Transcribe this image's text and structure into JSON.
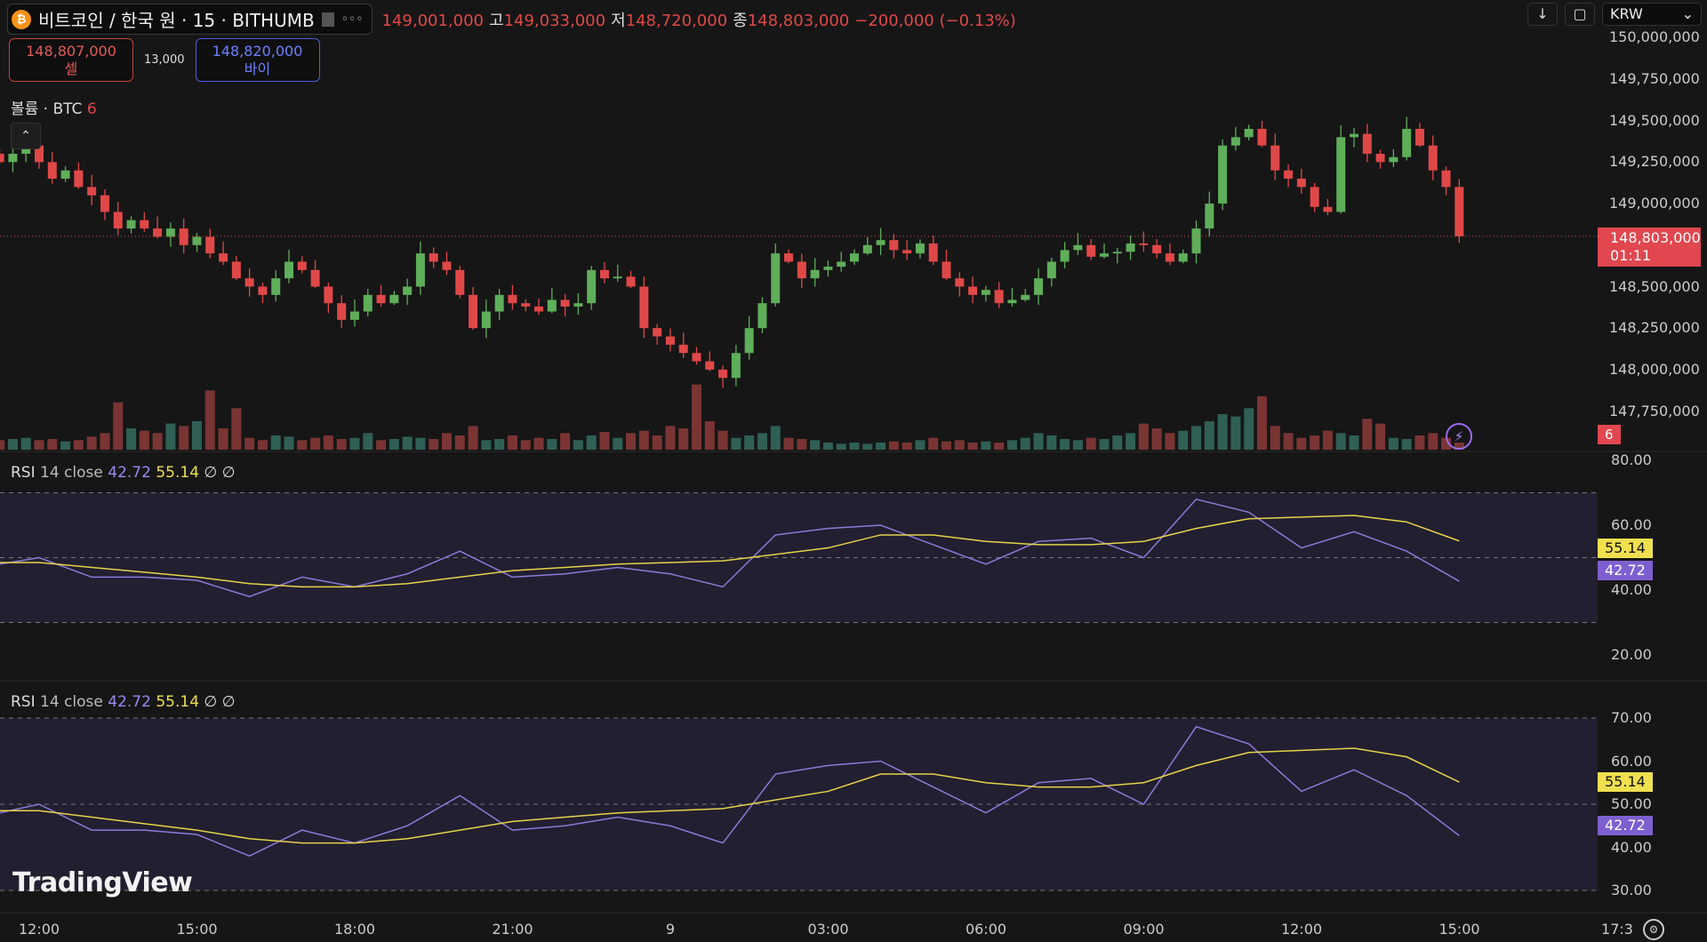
{
  "header": {
    "symbol": "비트코인 / 한국 원 · 15 · BITHUMB",
    "coin_icon": "bitcoin-icon",
    "open": "149,001,000",
    "high_label": "고",
    "high": "149,033,000",
    "low_label": "저",
    "low": "148,720,000",
    "close_label": "종",
    "close": "148,803,000",
    "change": "−200,000 (−0.13%)"
  },
  "trade": {
    "sell_price": "148,807,000",
    "sell_label": "셀",
    "spread": "13,000",
    "buy_price": "148,820,000",
    "buy_label": "바이"
  },
  "volume_legend": {
    "label": "볼륨 · BTC",
    "value": "6"
  },
  "toolbar": {
    "currency": "KRW"
  },
  "price_axis": {
    "ticks": [
      "150,000,000",
      "149,750,000",
      "149,500,000",
      "149,250,000",
      "149,000,000",
      "148,500,000",
      "148,250,000",
      "148,000,000",
      "147,750,000"
    ],
    "last_price": "148,803,000",
    "countdown": "01:11",
    "volume_tag": "6"
  },
  "rsi1": {
    "label": "RSI",
    "params": "14 close",
    "value": "42.72",
    "ma": "55.14",
    "extra": "∅ ∅",
    "ticks": [
      "80.00",
      "60.00",
      "40.00",
      "20.00"
    ]
  },
  "rsi2": {
    "label": "RSI",
    "params": "14 close",
    "value": "42.72",
    "ma": "55.14",
    "extra": "∅ ∅",
    "ticks": [
      "70.00",
      "60.00",
      "50.00",
      "40.00",
      "30.00"
    ]
  },
  "time_axis": [
    "12:00",
    "15:00",
    "18:00",
    "21:00",
    "9",
    "03:00",
    "06:00",
    "09:00",
    "12:00",
    "15:00",
    "17:3"
  ],
  "watermark": "TradingView",
  "colors": {
    "up": "#5fae5a",
    "down": "#e04848",
    "rsi": "#8c7ad8",
    "rsi_ma": "#e6d34a",
    "band": "#221f30"
  },
  "chart_data": {
    "type": "candlestick",
    "interval": "15",
    "price_range": [
      147650000,
      150000000
    ],
    "closes": [
      149250000,
      149300000,
      149350000,
      149250000,
      149150000,
      149200000,
      149100000,
      149050000,
      148950000,
      148850000,
      148900000,
      148850000,
      148800000,
      148850000,
      148750000,
      148800000,
      148700000,
      148650000,
      148550000,
      148500000,
      148450000,
      148550000,
      148650000,
      148600000,
      148500000,
      148400000,
      148300000,
      148350000,
      148450000,
      148400000,
      148450000,
      148500000,
      148700000,
      148650000,
      148600000,
      148450000,
      148250000,
      148350000,
      148450000,
      148400000,
      148380000,
      148350000,
      148420000,
      148380000,
      148400000,
      148600000,
      148550000,
      148560000,
      148500000,
      148250000,
      148200000,
      148150000,
      148100000,
      148050000,
      148000000,
      147950000,
      148100000,
      148250000,
      148400000,
      148700000,
      148650000,
      148550000,
      148600000,
      148620000,
      148650000,
      148700000,
      148750000,
      148780000,
      148720000,
      148700000,
      148760000,
      148650000,
      148550000,
      148500000,
      148450000,
      148480000,
      148400000,
      148420000,
      148450000,
      148550000,
      148650000,
      148720000,
      148750000,
      148680000,
      148700000,
      148710000,
      148760000,
      148750000,
      148700000,
      148650000,
      148700000,
      148850000,
      149000000,
      149350000,
      149400000,
      149450000,
      149350000,
      149200000,
      149150000,
      149100000,
      148980000,
      148950000,
      149400000,
      149420000,
      149300000,
      149250000,
      149280000,
      149450000,
      149350000,
      149200000,
      149100000,
      148803000
    ],
    "volumes": [
      8,
      9,
      10,
      8,
      9,
      7,
      8,
      11,
      14,
      40,
      18,
      16,
      14,
      22,
      20,
      24,
      50,
      18,
      35,
      10,
      8,
      12,
      11,
      8,
      10,
      12,
      9,
      10,
      14,
      8,
      9,
      11,
      10,
      9,
      14,
      12,
      20,
      8,
      9,
      12,
      8,
      10,
      9,
      14,
      8,
      12,
      15,
      10,
      14,
      16,
      12,
      20,
      18,
      55,
      24,
      16,
      10,
      12,
      14,
      20,
      10,
      9,
      8,
      6,
      5,
      6,
      5,
      6,
      7,
      6,
      8,
      10,
      7,
      8,
      6,
      7,
      6,
      8,
      10,
      14,
      12,
      9,
      8,
      10,
      9,
      12,
      14,
      22,
      18,
      14,
      16,
      20,
      24,
      30,
      28,
      35,
      45,
      20,
      14,
      10,
      12,
      16,
      14,
      12,
      26,
      22,
      10,
      9,
      12,
      14,
      10,
      6
    ],
    "rsi_hourly_from": "12:00",
    "rsi": [
      50,
      44,
      44,
      43,
      38,
      44,
      41,
      45,
      52,
      44,
      45,
      47,
      45,
      41,
      57,
      59,
      60,
      54,
      48,
      55,
      56,
      50,
      68,
      64,
      53,
      58,
      52,
      42.72
    ],
    "rsi_ma": [
      48.5,
      47,
      45.5,
      44,
      42,
      41,
      41,
      42,
      44,
      46,
      47,
      48,
      48.5,
      49,
      51,
      53,
      57,
      57,
      55,
      54,
      54,
      55,
      59,
      62,
      62.5,
      63,
      61,
      55.14
    ],
    "rsi1_range": [
      15,
      85
    ],
    "rsi2_range": [
      27,
      77
    ],
    "bands": [
      70,
      50,
      30
    ]
  }
}
